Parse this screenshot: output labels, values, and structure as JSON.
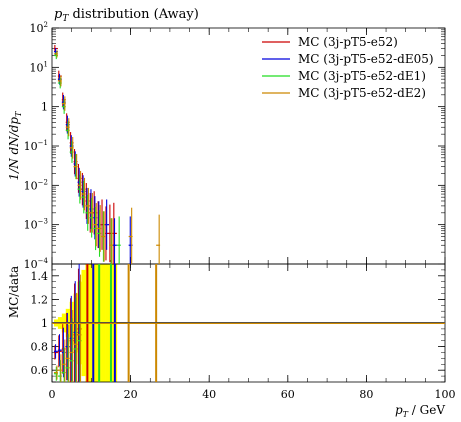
{
  "chart_data": [
    {
      "type": "scatter",
      "panel": "main",
      "title": "p_T distribution (Away)",
      "title_base": "p",
      "title_sub": "T",
      "title_rest": " distribution (Away)",
      "ylabel": "1/N dN/dp_T",
      "ylabel_text": "1/N dN/dp",
      "ylabel_sub": "T",
      "y_scale": "log",
      "xlim": [
        0,
        100
      ],
      "ylim": [
        0.0001,
        100
      ],
      "y_ticks": [
        {
          "value": 100,
          "base": "10",
          "exp": "2"
        },
        {
          "value": 10,
          "base": "10",
          "exp": "1"
        },
        {
          "value": 1,
          "base": "1",
          "exp": ""
        },
        {
          "value": 0.1,
          "base": "10",
          "exp": "−1"
        },
        {
          "value": 0.01,
          "base": "10",
          "exp": "−2"
        },
        {
          "value": 0.001,
          "base": "10",
          "exp": "−3"
        },
        {
          "value": 0.0001,
          "base": "10",
          "exp": "−4"
        }
      ],
      "legend_position": "top-right",
      "series": [
        {
          "name": "MC (3j-pT5-e52)",
          "color": "#cc0000",
          "x": [
            1,
            2,
            3,
            4,
            5,
            6,
            7,
            8,
            9,
            10,
            11,
            12,
            13,
            14,
            15,
            16
          ],
          "y": [
            30,
            6,
            1.5,
            0.4,
            0.12,
            0.04,
            0.015,
            0.008,
            0.004,
            0.002,
            0.002,
            0.001,
            0.001,
            0.0006,
            0.0006,
            0.0006
          ]
        },
        {
          "name": "MC (3j-pT5-e52-dE05)",
          "color": "#0000dd",
          "x": [
            1,
            2,
            3,
            4,
            5,
            6,
            7,
            8,
            9,
            10,
            11,
            12,
            14,
            16,
            20
          ],
          "y": [
            25,
            5,
            1.3,
            0.35,
            0.1,
            0.035,
            0.012,
            0.007,
            0.003,
            0.0025,
            0.0015,
            0.001,
            0.001,
            0.0003,
            0.0003
          ]
        },
        {
          "name": "MC (3j-pT5-e52-dE1)",
          "color": "#22dd22",
          "x": [
            1,
            2,
            3,
            4,
            5,
            6,
            7,
            8,
            9,
            10,
            11,
            12,
            13,
            15,
            17
          ],
          "y": [
            20,
            4,
            1.0,
            0.25,
            0.07,
            0.03,
            0.008,
            0.005,
            0.002,
            0.0015,
            0.0008,
            0.0006,
            0.0005,
            0.0003,
            0.0003
          ]
        },
        {
          "name": "MC (3j-pT5-e52-dE2)",
          "color": "#cc8800",
          "x": [
            1,
            2,
            3,
            4,
            5,
            6,
            7,
            8,
            9,
            10,
            11,
            12,
            13,
            15,
            20,
            27
          ],
          "y": [
            22,
            4.5,
            1.2,
            0.3,
            0.09,
            0.03,
            0.01,
            0.006,
            0.003,
            0.002,
            0.001,
            0.0008,
            0.0005,
            0.0003,
            0.0005,
            0.0003
          ]
        }
      ]
    },
    {
      "type": "scatter",
      "panel": "ratio",
      "ylabel": "MC/data",
      "xlabel": "p_T / GeV",
      "xlabel_base": "p",
      "xlabel_sub": "T",
      "xlabel_rest": " / GeV",
      "xlim": [
        0,
        100
      ],
      "ylim": [
        0.5,
        1.5
      ],
      "x_ticks": [
        "0",
        "20",
        "40",
        "60",
        "80",
        "100"
      ],
      "y_ticks": [
        "0.6",
        "0.8",
        "1",
        "1.2",
        "1.4"
      ],
      "reference": 1,
      "band_color": "#ffff00",
      "band": {
        "x": [
          1,
          2,
          3,
          4,
          5,
          6,
          7,
          8,
          9,
          10,
          11,
          12,
          13,
          14,
          15,
          16
        ],
        "lo": [
          0.97,
          0.95,
          0.92,
          0.88,
          0.82,
          0.75,
          0.65,
          0.55,
          0.5,
          0.5,
          0.5,
          0.5,
          0.5,
          0.5,
          0.5,
          0.5
        ],
        "hi": [
          1.03,
          1.05,
          1.08,
          1.12,
          1.18,
          1.25,
          1.35,
          1.45,
          1.5,
          1.5,
          1.5,
          1.5,
          1.5,
          1.5,
          1.5,
          1.5
        ]
      },
      "series": [
        {
          "name": "MC (3j-pT5-e52)",
          "x": [
            1,
            2,
            3,
            4,
            5,
            6,
            7
          ],
          "y": [
            0.75,
            0.76,
            0.78,
            0.8,
            0.85,
            0.9,
            0.95
          ]
        },
        {
          "name": "MC (3j-pT5-e52-dE05)",
          "x": [
            1,
            2,
            3,
            4,
            5,
            6,
            7
          ],
          "y": [
            0.76,
            0.77,
            0.75,
            0.8,
            0.87,
            0.92,
            1.0
          ]
        },
        {
          "name": "MC (3j-pT5-e52-dE1)",
          "x": [
            1,
            2,
            3,
            4,
            5,
            6,
            7
          ],
          "y": [
            0.57,
            0.55,
            0.58,
            0.62,
            0.68,
            0.78,
            0.85
          ]
        },
        {
          "name": "MC (3j-pT5-e52-dE2)",
          "x": [
            1,
            2,
            3,
            4,
            5,
            6,
            7
          ],
          "y": [
            0.58,
            0.6,
            0.65,
            0.7,
            0.75,
            0.82,
            0.9
          ]
        }
      ],
      "spikes": [
        {
          "series": 0,
          "x": 9,
          "lo": 0.5,
          "hi": 1.5
        },
        {
          "series": 1,
          "x": 10.5,
          "lo": 0.5,
          "hi": 1.5
        },
        {
          "series": 1,
          "x": 16,
          "lo": 0.5,
          "hi": 1.5
        },
        {
          "series": 2,
          "x": 12,
          "lo": 0.5,
          "hi": 1.5
        },
        {
          "series": 2,
          "x": 15,
          "lo": 0.5,
          "hi": 1.5
        },
        {
          "series": 3,
          "x": 19.5,
          "lo": 0.5,
          "hi": 1.5
        },
        {
          "series": 3,
          "x": 26.5,
          "lo": 0.5,
          "hi": 1.5
        }
      ]
    }
  ]
}
